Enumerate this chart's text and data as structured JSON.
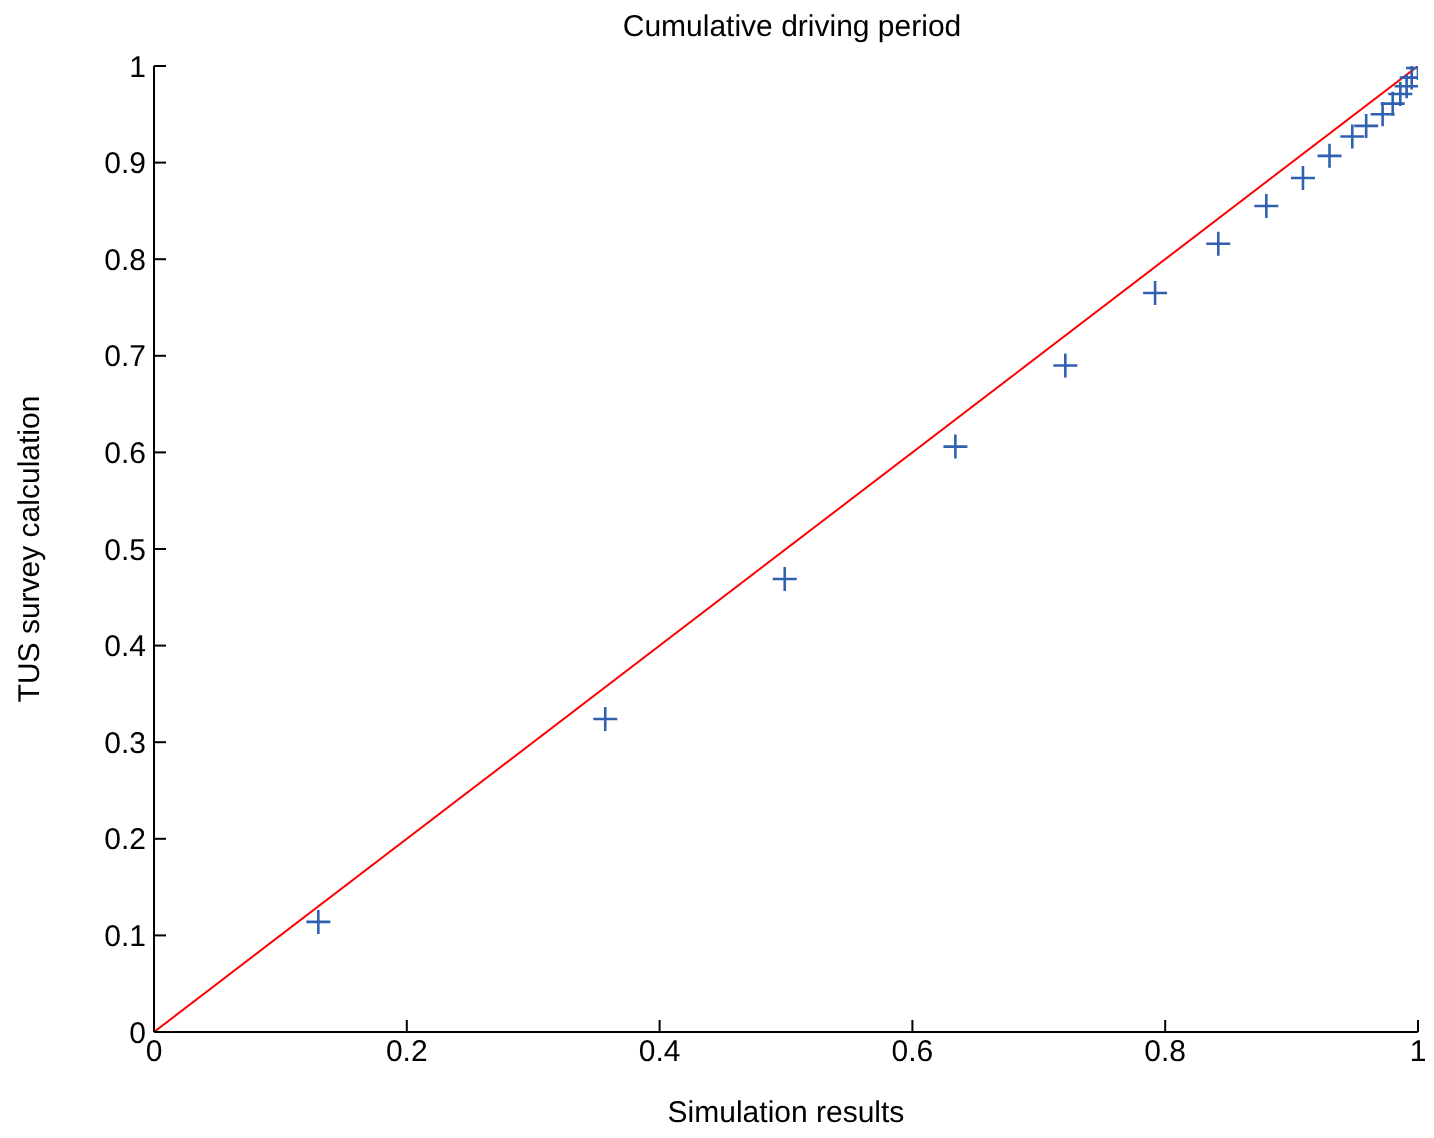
{
  "chart_data": {
    "type": "scatter",
    "title": "Cumulative driving period",
    "xlabel": "Simulation results",
    "ylabel": "TUS survey calculation",
    "xlim": [
      0,
      1
    ],
    "ylim": [
      0,
      1
    ],
    "xticks": [
      0,
      0.2,
      0.4,
      0.6,
      0.8,
      1
    ],
    "yticks": [
      0,
      0.1,
      0.2,
      0.3,
      0.4,
      0.5,
      0.6,
      0.7,
      0.8,
      0.9,
      1
    ],
    "grid": false,
    "legend": false,
    "series": [
      {
        "marker": "cross",
        "color": "#3060b0",
        "x": [
          0.13,
          0.357,
          0.499,
          0.634,
          0.721,
          0.792,
          0.842,
          0.88,
          0.909,
          0.93,
          0.948,
          0.959,
          0.972,
          0.98,
          0.986,
          0.991,
          0.995,
          1
        ],
        "values": [
          0.114,
          0.324,
          0.469,
          0.606,
          0.69,
          0.765,
          0.816,
          0.855,
          0.884,
          0.907,
          0.927,
          0.938,
          0.95,
          0.961,
          0.971,
          0.979,
          0.988,
          0.998
        ]
      },
      {
        "type": "line",
        "marker": "none",
        "color": "#ff0000",
        "x": [
          0,
          1
        ],
        "values": [
          0,
          1
        ]
      }
    ]
  }
}
